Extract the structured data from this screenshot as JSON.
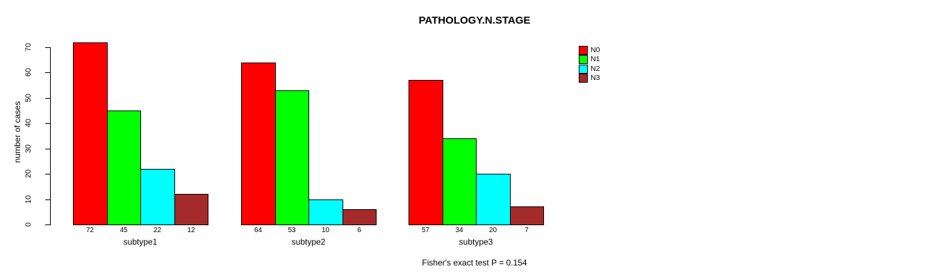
{
  "figure": {
    "title": "PATHOLOGY.N.STAGE",
    "annotation": "Fisher's exact test P = 0.154"
  },
  "chart_data": {
    "type": "bar",
    "title": "PATHOLOGY.N.STAGE",
    "xlabel": "",
    "ylabel": "number of cases",
    "categories": [
      "subtype1",
      "subtype2",
      "subtype3"
    ],
    "series": [
      {
        "name": "N0",
        "color": "#ff0000",
        "values": [
          72,
          64,
          57
        ]
      },
      {
        "name": "N1",
        "color": "#00ff00",
        "values": [
          45,
          53,
          34
        ]
      },
      {
        "name": "N2",
        "color": "#00ffff",
        "values": [
          22,
          10,
          20
        ]
      },
      {
        "name": "N3",
        "color": "#a52a2a",
        "values": [
          12,
          6,
          7
        ]
      }
    ],
    "bar_value_labels": [
      [
        "72",
        "45",
        "22",
        "12"
      ],
      [
        "64",
        "53",
        "10",
        "6"
      ],
      [
        "57",
        "34",
        "20",
        "7"
      ]
    ],
    "yticks": [
      0,
      10,
      20,
      30,
      40,
      50,
      60,
      70
    ],
    "ylim": [
      0,
      75
    ],
    "grid": false,
    "legend_position": "top-right",
    "legend_entries": [
      "N0",
      "N1",
      "N2",
      "N3"
    ],
    "annotation": "Fisher's exact test P = 0.154",
    "axis_color": "#000000",
    "bar_border_color": "#000000"
  }
}
